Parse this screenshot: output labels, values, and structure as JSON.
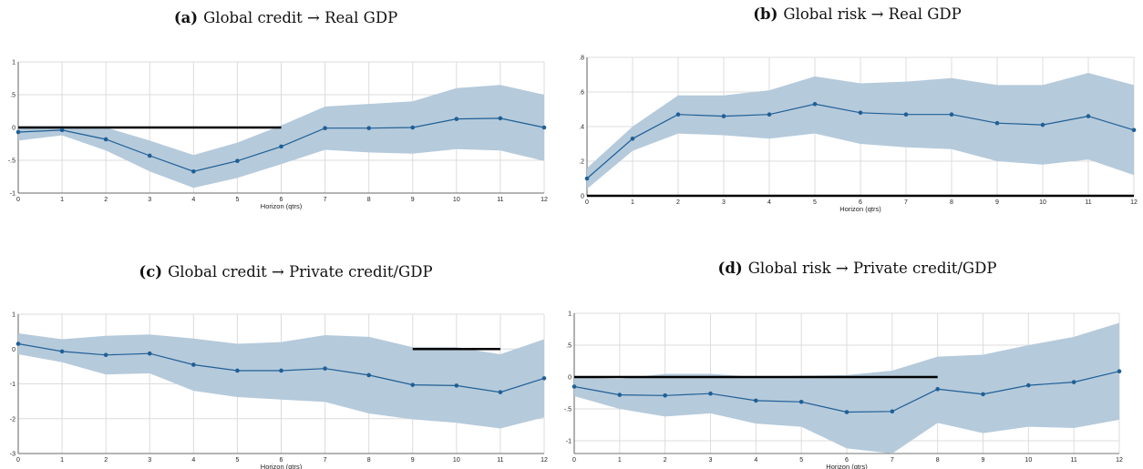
{
  "chart_data": [
    {
      "id": "a",
      "type": "line",
      "tag": "(a)",
      "title": "Global credit → Real GDP",
      "xlabel": "Horizon (qtrs)",
      "ylabel": "",
      "x": [
        0,
        1,
        2,
        3,
        4,
        5,
        6,
        7,
        8,
        9,
        10,
        11,
        12
      ],
      "xticks": [
        "0",
        "1",
        "2",
        "3",
        "4",
        "5",
        "6",
        "7",
        "8",
        "9",
        "10",
        "11",
        "12"
      ],
      "ylim": [
        -1,
        1
      ],
      "yticks": [
        -1,
        -0.5,
        0,
        0.5,
        1
      ],
      "ytick_labels": [
        "-1",
        "-.5",
        "0",
        ".5",
        "1"
      ],
      "series": [
        {
          "role": "point_estimate",
          "values": [
            -0.07,
            -0.04,
            -0.18,
            -0.43,
            -0.67,
            -0.51,
            -0.29,
            -0.01,
            -0.01,
            0.0,
            0.13,
            0.14,
            0.0
          ]
        },
        {
          "role": "band_upper",
          "values": [
            0.02,
            0.02,
            0.0,
            -0.2,
            -0.42,
            -0.23,
            0.03,
            0.32,
            0.36,
            0.4,
            0.6,
            0.65,
            0.5
          ]
        },
        {
          "role": "band_lower",
          "values": [
            -0.2,
            -0.12,
            -0.35,
            -0.67,
            -0.92,
            -0.77,
            -0.56,
            -0.34,
            -0.38,
            -0.4,
            -0.33,
            -0.35,
            -0.51
          ]
        }
      ],
      "zero_line_segments": [
        [
          0,
          6
        ]
      ],
      "colors": {
        "band": "#b5cadb",
        "line": "#1f5f96",
        "zero": "#000000",
        "grid": "#dcdcdc"
      },
      "grid": true
    },
    {
      "id": "b",
      "type": "line",
      "tag": "(b)",
      "title": "Global risk → Real GDP",
      "xlabel": "Horizon (qtrs)",
      "ylabel": "",
      "x": [
        0,
        1,
        2,
        3,
        4,
        5,
        6,
        7,
        8,
        9,
        10,
        11,
        12
      ],
      "xticks": [
        "0",
        "1",
        "2",
        "3",
        "4",
        "5",
        "6",
        "7",
        "8",
        "9",
        "10",
        "11",
        "12"
      ],
      "ylim": [
        0,
        0.8
      ],
      "yticks": [
        0,
        0.2,
        0.4,
        0.6,
        0.8
      ],
      "ytick_labels": [
        "0",
        ".2",
        ".4",
        ".6",
        ".8"
      ],
      "series": [
        {
          "role": "point_estimate",
          "values": [
            0.1,
            0.33,
            0.47,
            0.46,
            0.47,
            0.53,
            0.48,
            0.47,
            0.47,
            0.42,
            0.41,
            0.46,
            0.38
          ]
        },
        {
          "role": "band_upper",
          "values": [
            0.16,
            0.4,
            0.58,
            0.58,
            0.61,
            0.69,
            0.65,
            0.66,
            0.68,
            0.64,
            0.64,
            0.71,
            0.64
          ]
        },
        {
          "role": "band_lower",
          "values": [
            0.04,
            0.26,
            0.36,
            0.35,
            0.33,
            0.36,
            0.3,
            0.28,
            0.27,
            0.2,
            0.18,
            0.21,
            0.12
          ]
        }
      ],
      "zero_line_segments": [
        [
          0,
          12
        ]
      ],
      "colors": {
        "band": "#b5cadb",
        "line": "#1f5f96",
        "zero": "#000000",
        "grid": "#dcdcdc"
      },
      "grid": true
    },
    {
      "id": "c",
      "type": "line",
      "tag": "(c)",
      "title": "Global credit → Private credit/GDP",
      "xlabel": "Horizon (qtrs)",
      "ylabel": "",
      "x": [
        0,
        1,
        2,
        3,
        4,
        5,
        6,
        7,
        8,
        9,
        10,
        11,
        12
      ],
      "xticks": [
        "0",
        "1",
        "2",
        "3",
        "4",
        "5",
        "6",
        "7",
        "8",
        "9",
        "10",
        "11",
        "12"
      ],
      "ylim": [
        -3,
        1
      ],
      "yticks": [
        -3,
        -2,
        -1,
        0,
        1
      ],
      "ytick_labels": [
        "-3",
        "-2",
        "-1",
        "0",
        "1"
      ],
      "series": [
        {
          "role": "point_estimate",
          "values": [
            0.15,
            -0.07,
            -0.17,
            -0.13,
            -0.45,
            -0.62,
            -0.62,
            -0.56,
            -0.75,
            -1.03,
            -1.05,
            -1.24,
            -0.84
          ]
        },
        {
          "role": "band_upper",
          "values": [
            0.45,
            0.28,
            0.38,
            0.42,
            0.3,
            0.15,
            0.2,
            0.4,
            0.35,
            0.05,
            0.05,
            -0.15,
            0.28
          ]
        },
        {
          "role": "band_lower",
          "values": [
            -0.15,
            -0.38,
            -0.73,
            -0.7,
            -1.2,
            -1.38,
            -1.45,
            -1.52,
            -1.85,
            -2.02,
            -2.12,
            -2.28,
            -1.96
          ]
        }
      ],
      "zero_line_segments": [
        [
          9,
          11
        ]
      ],
      "colors": {
        "band": "#b5cadb",
        "line": "#1f5f96",
        "zero": "#000000",
        "grid": "#dcdcdc"
      },
      "grid": true
    },
    {
      "id": "d",
      "type": "line",
      "tag": "(d)",
      "title": "Global risk → Private credit/GDP",
      "xlabel": "Horizon (qtrs)",
      "ylabel": "",
      "x": [
        0,
        1,
        2,
        3,
        4,
        5,
        6,
        7,
        8,
        9,
        10,
        11,
        12
      ],
      "xticks": [
        "0",
        "1",
        "2",
        "3",
        "4",
        "5",
        "6",
        "7",
        "8",
        "9",
        "10",
        "11",
        "12"
      ],
      "ylim": [
        -1.2,
        1
      ],
      "yticks": [
        -1,
        -0.5,
        0,
        0.5,
        1
      ],
      "ytick_labels": [
        "-1",
        "-.5",
        "0",
        ".5",
        "1"
      ],
      "series": [
        {
          "role": "point_estimate",
          "values": [
            -0.15,
            -0.28,
            -0.29,
            -0.26,
            -0.37,
            -0.39,
            -0.55,
            -0.54,
            -0.19,
            -0.27,
            -0.13,
            -0.08,
            0.09
          ]
        },
        {
          "role": "band_upper",
          "values": [
            0.0,
            -0.03,
            0.05,
            0.05,
            0.0,
            0.02,
            0.03,
            0.1,
            0.32,
            0.35,
            0.5,
            0.63,
            0.85
          ]
        },
        {
          "role": "band_lower",
          "values": [
            -0.3,
            -0.5,
            -0.62,
            -0.57,
            -0.73,
            -0.78,
            -1.12,
            -1.2,
            -0.72,
            -0.88,
            -0.78,
            -0.8,
            -0.67
          ]
        }
      ],
      "zero_line_segments": [
        [
          0,
          8
        ]
      ],
      "colors": {
        "band": "#b5cadb",
        "line": "#1f5f96",
        "zero": "#000000",
        "grid": "#dcdcdc"
      },
      "grid": true
    }
  ]
}
